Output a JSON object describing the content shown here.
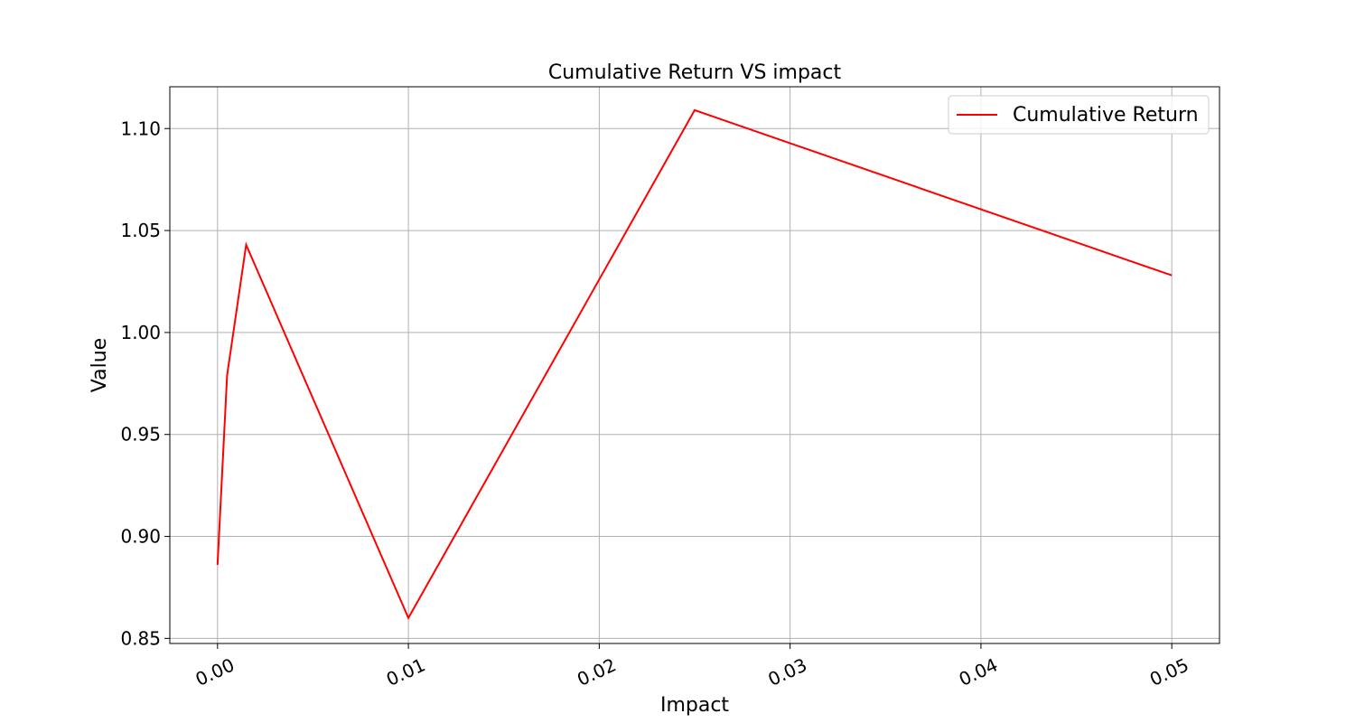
{
  "chart_data": {
    "type": "line",
    "title": "Cumulative Return VS impact",
    "xlabel": "Impact",
    "ylabel": "Value",
    "xlim": [
      -0.0025,
      0.0525
    ],
    "ylim": [
      0.8475,
      1.1205
    ],
    "x_ticks": [
      0.0,
      0.01,
      0.02,
      0.03,
      0.04,
      0.05
    ],
    "x_tick_labels": [
      "0.00",
      "0.01",
      "0.02",
      "0.03",
      "0.04",
      "0.05"
    ],
    "y_ticks": [
      0.85,
      0.9,
      0.95,
      1.0,
      1.05,
      1.1
    ],
    "y_tick_labels": [
      "0.85",
      "0.90",
      "0.95",
      "1.00",
      "1.05",
      "1.10"
    ],
    "grid": true,
    "legend_position": "top-right",
    "series": [
      {
        "name": "Cumulative Return",
        "color": "#ff0000",
        "x": [
          0.0,
          0.0005,
          0.0015,
          0.01,
          0.025,
          0.05
        ],
        "y": [
          0.886,
          0.979,
          1.043,
          0.86,
          1.109,
          1.028
        ]
      }
    ]
  }
}
